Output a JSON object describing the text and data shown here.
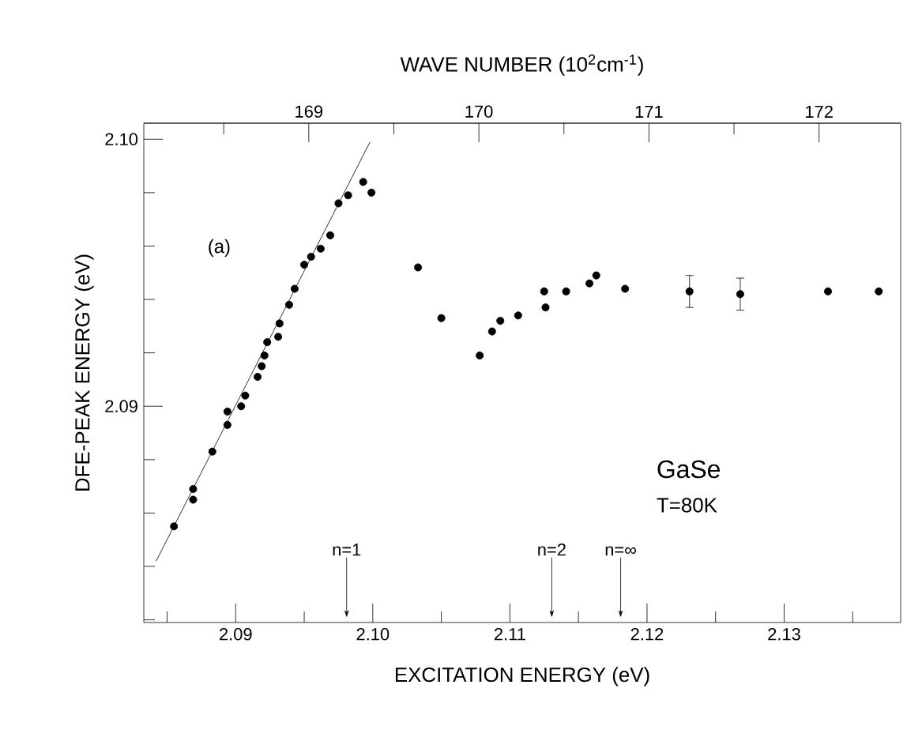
{
  "chart_data": {
    "type": "scatter",
    "xlabel": "EXCITATION ENERGY (eV)",
    "ylabel": "DFE-PEAK ENERGY (eV)",
    "x2label": "WAVE NUMBER (10$^{2}$cm$^{-1}$)",
    "xlim": [
      2.0833,
      2.1385
    ],
    "ylim": [
      2.0819,
      2.1006
    ],
    "x2lim": [
      168.03,
      172.48
    ],
    "xticks": [
      {
        "value": 2.085,
        "label": null
      },
      {
        "value": 2.09,
        "label": "2.09"
      },
      {
        "value": 2.095,
        "label": null
      },
      {
        "value": 2.1,
        "label": "2.10"
      },
      {
        "value": 2.105,
        "label": null
      },
      {
        "value": 2.11,
        "label": "2.11"
      },
      {
        "value": 2.115,
        "label": null
      },
      {
        "value": 2.12,
        "label": "2.12"
      },
      {
        "value": 2.125,
        "label": null
      },
      {
        "value": 2.13,
        "label": "2.13"
      },
      {
        "value": 2.135,
        "label": null
      }
    ],
    "yticks": [
      {
        "value": 2.082,
        "label": null
      },
      {
        "value": 2.084,
        "label": null
      },
      {
        "value": 2.086,
        "label": null
      },
      {
        "value": 2.088,
        "label": null
      },
      {
        "value": 2.09,
        "label": "2.09"
      },
      {
        "value": 2.092,
        "label": null
      },
      {
        "value": 2.094,
        "label": null
      },
      {
        "value": 2.096,
        "label": null
      },
      {
        "value": 2.098,
        "label": null
      },
      {
        "value": 2.1,
        "label": "2.10"
      }
    ],
    "x2ticks": [
      {
        "value": 168.5,
        "label": null
      },
      {
        "value": 169,
        "label": "169"
      },
      {
        "value": 169.5,
        "label": null
      },
      {
        "value": 170,
        "label": "170"
      },
      {
        "value": 170.5,
        "label": null
      },
      {
        "value": 171,
        "label": "171"
      },
      {
        "value": 171.5,
        "label": null
      },
      {
        "value": 172,
        "label": "172"
      }
    ],
    "line_style": "solid",
    "series": [
      {
        "color": "#000000",
        "marker": "circle",
        "x": [
          2.0855,
          2.0869,
          2.0869,
          2.0883,
          2.0894,
          2.0894,
          2.0904,
          2.0907,
          2.0916,
          2.0919,
          2.0921,
          2.0923,
          2.0931,
          2.0932,
          2.0939,
          2.0943,
          2.095,
          2.0955,
          2.0962,
          2.0969,
          2.0975,
          2.0982,
          2.0993,
          2.0999,
          2.1033,
          2.105,
          2.1078,
          2.1087,
          2.1093,
          2.1106,
          2.1125,
          2.1126,
          2.1141,
          2.1158,
          2.1163,
          2.1184,
          2.1231,
          2.1268,
          2.1332,
          2.1369
        ],
        "values": [
          2.0855,
          2.0869,
          2.0865,
          2.0883,
          2.0898,
          2.0893,
          2.09,
          2.0904,
          2.0911,
          2.0915,
          2.0919,
          2.0924,
          2.0926,
          2.0931,
          2.0938,
          2.0944,
          2.0953,
          2.0956,
          2.0959,
          2.0964,
          2.0976,
          2.0979,
          2.0984,
          2.098,
          2.0952,
          2.0933,
          2.0919,
          2.0928,
          2.0932,
          2.0934,
          2.0943,
          2.0937,
          2.0943,
          2.0946,
          2.0949,
          2.0944,
          2.0943,
          2.0942,
          2.0943,
          2.0943
        ],
        "errors": [
          null,
          null,
          null,
          null,
          null,
          null,
          null,
          null,
          null,
          null,
          null,
          null,
          null,
          null,
          null,
          null,
          null,
          null,
          null,
          null,
          null,
          null,
          null,
          null,
          null,
          null,
          null,
          null,
          null,
          null,
          null,
          null,
          null,
          null,
          null,
          null,
          0.0006,
          0.0006,
          null,
          null
        ]
      },
      {
        "type": "line",
        "marker": "none",
        "color": "#000000",
        "x": [
          2.0842,
          2.0998
        ],
        "values": [
          2.0842,
          2.0999
        ]
      }
    ],
    "annotations": [
      "(a)",
      "GaSe",
      "T=80K",
      "n=1",
      "n=2",
      "n=∞"
    ]
  }
}
